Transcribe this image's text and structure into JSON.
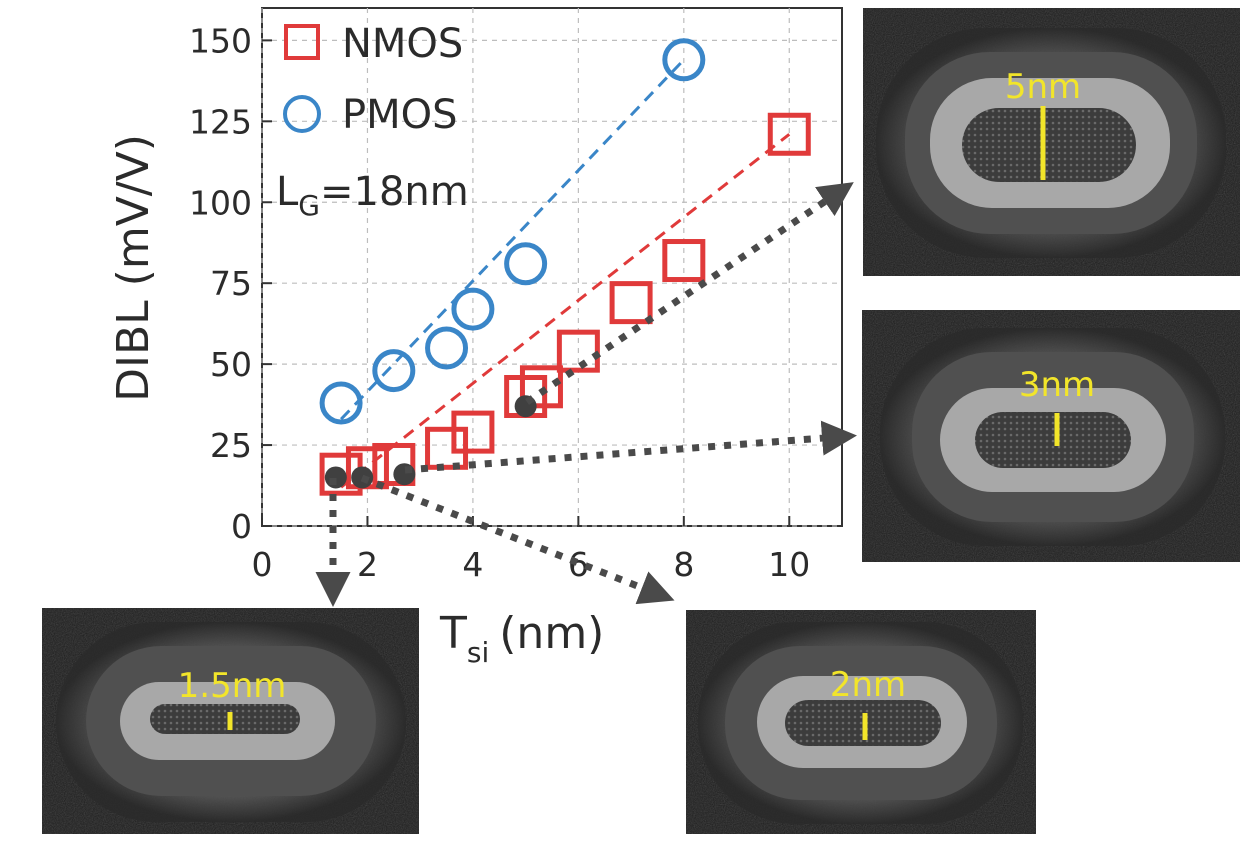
{
  "chart_data": {
    "type": "scatter",
    "xlabel": "T",
    "xlabel_sub": "si",
    "xlabel_unit": "(nm)",
    "ylabel": "DIBL (mV/V)",
    "xlim": [
      0,
      11
    ],
    "ylim": [
      0,
      160
    ],
    "xticks": [
      0,
      2,
      4,
      6,
      8,
      10
    ],
    "yticks": [
      0,
      25,
      50,
      75,
      100,
      125,
      150
    ],
    "grid": true,
    "legend_position": "top-left",
    "annotation": {
      "main": "L",
      "sub": "G",
      "rest": "=18nm"
    },
    "series": [
      {
        "name": "NMOS",
        "marker": "square",
        "color": "#e03a3a",
        "x": [
          1.5,
          2.0,
          2.5,
          3.5,
          4.0,
          5.0,
          5.3,
          6.0,
          7.0,
          8.0,
          10.0
        ],
        "y": [
          16,
          18,
          19,
          24,
          29,
          40,
          43,
          54,
          69,
          82,
          121
        ],
        "fit": {
          "x": [
            1.5,
            10.0
          ],
          "y": [
            12,
            121
          ]
        }
      },
      {
        "name": "PMOS",
        "marker": "circle",
        "color": "#3a86c8",
        "x": [
          1.5,
          2.5,
          3.5,
          4.0,
          5.0,
          8.0
        ],
        "y": [
          38,
          48,
          55,
          67,
          81,
          144
        ],
        "fit": {
          "x": [
            1.5,
            8.0
          ],
          "y": [
            33,
            144
          ]
        }
      },
      {
        "name": "",
        "marker": "filled-circle",
        "color": "#404040",
        "x": [
          1.4,
          1.9,
          2.7,
          5.0
        ],
        "y": [
          15,
          15,
          16,
          37
        ]
      }
    ]
  },
  "tem_images": [
    {
      "label": "5nm"
    },
    {
      "label": "3nm"
    },
    {
      "label": "1.5nm"
    },
    {
      "label": "2nm"
    }
  ]
}
